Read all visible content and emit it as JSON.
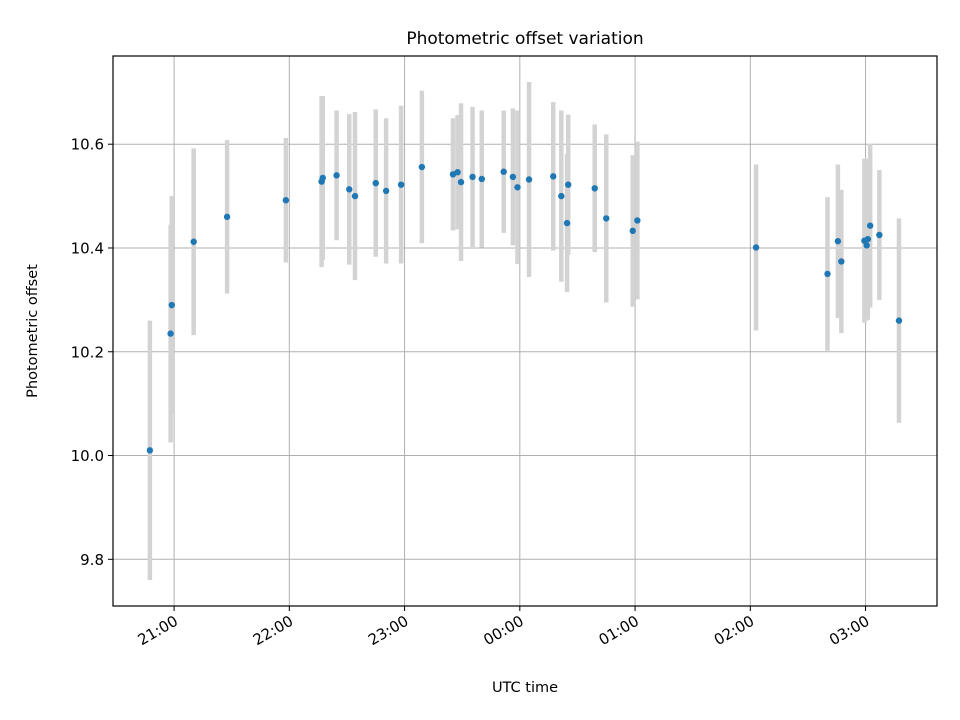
{
  "chart_data": {
    "type": "scatter",
    "title": "Photometric offset variation",
    "xlabel": "UTC time",
    "ylabel": "Photometric offset",
    "x_unit": "hours",
    "x_tick_labels": [
      "21:00",
      "22:00",
      "23:00",
      "00:00",
      "01:00",
      "02:00",
      "03:00"
    ],
    "x_ticks": [
      21,
      22,
      23,
      24,
      25,
      26,
      27
    ],
    "y_ticks": [
      9.8,
      10.0,
      10.2,
      10.4,
      10.6
    ],
    "y_tick_labels": [
      "9.8",
      "10.0",
      "10.2",
      "10.4",
      "10.6"
    ],
    "xlim": [
      20.47,
      27.62
    ],
    "ylim": [
      9.71,
      10.77
    ],
    "grid": true,
    "colors": {
      "points": "#1f77b4",
      "errorbars": "#d3d3d3",
      "grid": "#b0b0b0"
    },
    "points": [
      {
        "x": 20.79,
        "y": 10.01,
        "yerr": 0.25
      },
      {
        "x": 20.97,
        "y": 10.235,
        "yerr": 0.21
      },
      {
        "x": 20.98,
        "y": 10.29,
        "yerr": 0.21
      },
      {
        "x": 21.17,
        "y": 10.412,
        "yerr": 0.18
      },
      {
        "x": 21.46,
        "y": 10.46,
        "yerr": 0.148
      },
      {
        "x": 21.97,
        "y": 10.492,
        "yerr": 0.12
      },
      {
        "x": 22.28,
        "y": 10.528,
        "yerr": 0.165
      },
      {
        "x": 22.29,
        "y": 10.535,
        "yerr": 0.158
      },
      {
        "x": 22.41,
        "y": 10.54,
        "yerr": 0.125
      },
      {
        "x": 22.52,
        "y": 10.513,
        "yerr": 0.145
      },
      {
        "x": 22.57,
        "y": 10.5,
        "yerr": 0.162
      },
      {
        "x": 22.75,
        "y": 10.525,
        "yerr": 0.142
      },
      {
        "x": 22.84,
        "y": 10.51,
        "yerr": 0.14
      },
      {
        "x": 22.97,
        "y": 10.522,
        "yerr": 0.152
      },
      {
        "x": 23.15,
        "y": 10.556,
        "yerr": 0.147
      },
      {
        "x": 23.42,
        "y": 10.542,
        "yerr": 0.108
      },
      {
        "x": 23.46,
        "y": 10.546,
        "yerr": 0.11
      },
      {
        "x": 23.49,
        "y": 10.527,
        "yerr": 0.152
      },
      {
        "x": 23.59,
        "y": 10.537,
        "yerr": 0.135
      },
      {
        "x": 23.67,
        "y": 10.533,
        "yerr": 0.132
      },
      {
        "x": 23.86,
        "y": 10.547,
        "yerr": 0.118
      },
      {
        "x": 23.94,
        "y": 10.537,
        "yerr": 0.132
      },
      {
        "x": 23.98,
        "y": 10.517,
        "yerr": 0.148
      },
      {
        "x": 24.08,
        "y": 10.532,
        "yerr": 0.188
      },
      {
        "x": 24.29,
        "y": 10.538,
        "yerr": 0.143
      },
      {
        "x": 24.36,
        "y": 10.5,
        "yerr": 0.165
      },
      {
        "x": 24.41,
        "y": 10.448,
        "yerr": 0.133
      },
      {
        "x": 24.42,
        "y": 10.522,
        "yerr": 0.135
      },
      {
        "x": 24.65,
        "y": 10.515,
        "yerr": 0.123
      },
      {
        "x": 24.75,
        "y": 10.457,
        "yerr": 0.162
      },
      {
        "x": 24.98,
        "y": 10.433,
        "yerr": 0.146
      },
      {
        "x": 25.02,
        "y": 10.453,
        "yerr": 0.152
      },
      {
        "x": 26.05,
        "y": 10.401,
        "yerr": 0.16
      },
      {
        "x": 26.67,
        "y": 10.35,
        "yerr": 0.148
      },
      {
        "x": 26.76,
        "y": 10.413,
        "yerr": 0.148
      },
      {
        "x": 26.79,
        "y": 10.374,
        "yerr": 0.138
      },
      {
        "x": 26.99,
        "y": 10.414,
        "yerr": 0.158
      },
      {
        "x": 27.01,
        "y": 10.405,
        "yerr": 0.145
      },
      {
        "x": 27.02,
        "y": 10.417,
        "yerr": 0.155
      },
      {
        "x": 27.04,
        "y": 10.443,
        "yerr": 0.158
      },
      {
        "x": 27.12,
        "y": 10.425,
        "yerr": 0.125
      },
      {
        "x": 27.29,
        "y": 10.26,
        "yerr": 0.197
      }
    ]
  }
}
